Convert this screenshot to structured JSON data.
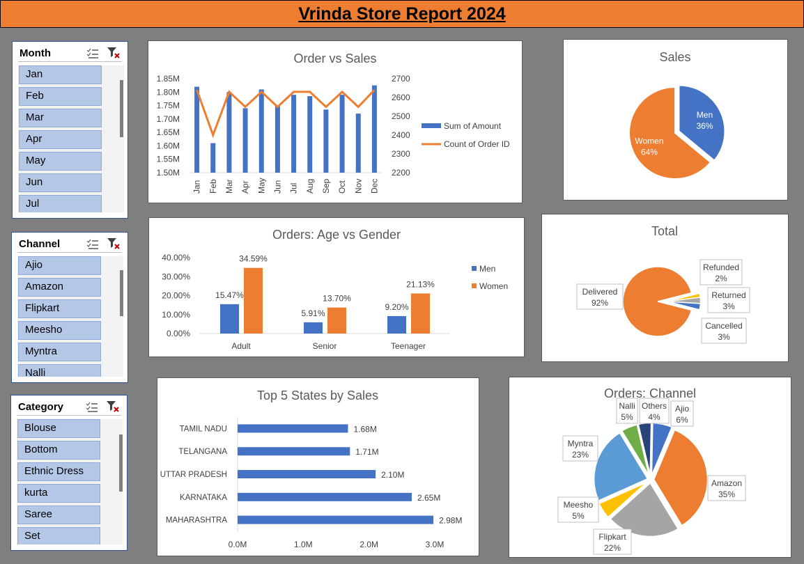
{
  "report_title": "Vrinda Store Report 2024",
  "slicers": {
    "month": {
      "title": "Month",
      "items": [
        "Jan",
        "Feb",
        "Mar",
        "Apr",
        "May",
        "Jun",
        "Jul"
      ]
    },
    "channel": {
      "title": "Channel",
      "items": [
        "Ajio",
        "Amazon",
        "Flipkart",
        "Meesho",
        "Myntra",
        "Nalli"
      ]
    },
    "category": {
      "title": "Category",
      "items": [
        "Blouse",
        "Bottom",
        "Ethnic Dress",
        "kurta",
        "Saree",
        "Set"
      ]
    }
  },
  "colors": {
    "blue": "#4472c4",
    "orange": "#ed7d31",
    "gray": "#a5a5a5",
    "yellow": "#ffc000",
    "lightblue": "#5b9bd5",
    "green": "#70ad47",
    "navy": "#264478"
  },
  "chart_data": [
    {
      "id": "order_vs_sales",
      "type": "bar",
      "title": "Order vs Sales",
      "categories": [
        "Jan",
        "Feb",
        "Mar",
        "Apr",
        "May",
        "Jun",
        "Jul",
        "Aug",
        "Sep",
        "Oct",
        "Nov",
        "Dec"
      ],
      "series": [
        {
          "name": "Sum of Amount",
          "type": "bar",
          "axis": "left",
          "values": [
            1.82,
            1.61,
            1.8,
            1.74,
            1.81,
            1.75,
            1.79,
            1.785,
            1.735,
            1.79,
            1.72,
            1.825
          ]
        },
        {
          "name": "Count of Order ID",
          "type": "line",
          "axis": "right",
          "values": [
            2640,
            2400,
            2630,
            2550,
            2630,
            2550,
            2630,
            2630,
            2550,
            2630,
            2550,
            2640
          ]
        }
      ],
      "y_left": {
        "ticks": [
          "1.50M",
          "1.55M",
          "1.60M",
          "1.65M",
          "1.70M",
          "1.75M",
          "1.80M",
          "1.85M"
        ],
        "min": 1.5,
        "max": 1.85
      },
      "y_right": {
        "ticks": [
          "2200",
          "2300",
          "2400",
          "2500",
          "2600",
          "2700"
        ],
        "min": 2200,
        "max": 2700
      },
      "legend": "right"
    },
    {
      "id": "sales_gender",
      "type": "pie",
      "title": "Sales",
      "slices": [
        {
          "label": "Men",
          "value": 36,
          "pct": "36%"
        },
        {
          "label": "Women",
          "value": 64,
          "pct": "64%"
        }
      ]
    },
    {
      "id": "age_gender",
      "type": "bar",
      "title": "Orders: Age vs Gender",
      "categories": [
        "Adult",
        "Senior",
        "Teenager"
      ],
      "series": [
        {
          "name": "Men",
          "values": [
            15.47,
            5.91,
            9.2
          ],
          "labels": [
            "15.47%",
            "5.91%",
            "9.20%"
          ]
        },
        {
          "name": "Women",
          "values": [
            34.59,
            13.7,
            21.13
          ],
          "labels": [
            "34.59%",
            "13.70%",
            "21.13%"
          ]
        }
      ],
      "y_ticks": [
        "0.00%",
        "10.00%",
        "20.00%",
        "30.00%",
        "40.00%"
      ],
      "ylim": [
        0,
        40
      ],
      "legend": "right"
    },
    {
      "id": "status_total",
      "type": "pie",
      "title": "Total",
      "slices": [
        {
          "label": "Delivered",
          "value": 92,
          "pct": "92%"
        },
        {
          "label": "Refunded",
          "value": 2,
          "pct": "2%"
        },
        {
          "label": "Returned",
          "value": 3,
          "pct": "3%"
        },
        {
          "label": "Cancelled",
          "value": 3,
          "pct": "3%"
        }
      ]
    },
    {
      "id": "top_states",
      "type": "bar",
      "orientation": "horizontal",
      "title": "Top 5 States by Sales",
      "categories": [
        "TAMIL NADU",
        "TELANGANA",
        "UTTAR PRADESH",
        "KARNATAKA",
        "MAHARASHTRA"
      ],
      "values": [
        1.68,
        1.71,
        2.1,
        2.65,
        2.98
      ],
      "labels": [
        "1.68M",
        "1.71M",
        "2.10M",
        "2.65M",
        "2.98M"
      ],
      "x_ticks": [
        "0.0M",
        "1.0M",
        "2.0M",
        "3.0M"
      ],
      "xlim": [
        0,
        3
      ]
    },
    {
      "id": "orders_channel",
      "type": "pie",
      "title": "Orders: Channel",
      "slices": [
        {
          "label": "Ajio",
          "value": 6,
          "pct": "6%"
        },
        {
          "label": "Amazon",
          "value": 35,
          "pct": "35%"
        },
        {
          "label": "Flipkart",
          "value": 22,
          "pct": "22%"
        },
        {
          "label": "Meesho",
          "value": 5,
          "pct": "5%"
        },
        {
          "label": "Myntra",
          "value": 23,
          "pct": "23%"
        },
        {
          "label": "Nalli",
          "value": 5,
          "pct": "5%"
        },
        {
          "label": "Others",
          "value": 4,
          "pct": "4%"
        }
      ]
    }
  ]
}
